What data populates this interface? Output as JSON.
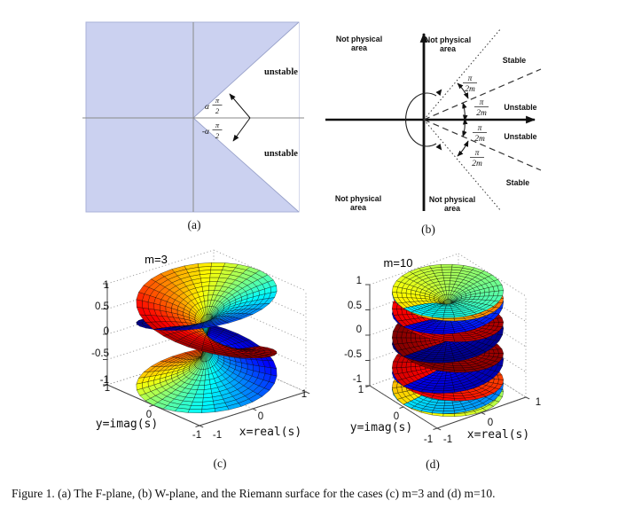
{
  "caption": "Figure 1. (a) The F-plane, (b) W-plane, and the Riemann surface for the cases (c) m=3 and (d) m=10.",
  "panel_a": {
    "label": "(a)",
    "unstable": "unstable",
    "angle_alpha": "α",
    "angle_alpha_neg": "-α",
    "frac_num": "π",
    "frac_den": "2",
    "region_fill": "#cbd1f0"
  },
  "panel_b": {
    "label": "(b)",
    "not_physical_line1": "Not physical",
    "not_physical_line2": "area",
    "stable": "Stable",
    "unstable": "Unstable",
    "frac_num": "π",
    "frac_den": "2m"
  },
  "chart_data": [
    {
      "type": "surface",
      "subplot": "(c)",
      "title": "m=3",
      "m": 3,
      "function": "Riemann surface of w = s^(1/3): height z = Re(s^(1/3)), color = Im(s^(1/3))",
      "sheets": 3,
      "theta_range_pi": [
        -3,
        3
      ],
      "xlabel": "x=real(s)",
      "ylabel": "y=imag(s)",
      "x_range": [
        -1,
        1
      ],
      "y_range": [
        -1,
        1
      ],
      "z_range": [
        -1,
        1
      ],
      "x_ticks": [
        -1,
        0,
        1
      ],
      "y_ticks": [
        1,
        0,
        -1
      ],
      "z_ticks": [
        1,
        0.5,
        0,
        -0.5,
        -1
      ],
      "colormap": "jet",
      "grid": true
    },
    {
      "type": "surface",
      "subplot": "(d)",
      "title": "m=10",
      "m": 10,
      "function": "Riemann surface of w = s^(1/10): height z = Re(s^(1/10)), color = Im(s^(1/10))",
      "sheets": 10,
      "theta_range_pi": [
        -10,
        10
      ],
      "xlabel": "x=real(s)",
      "ylabel": "y=imag(s)",
      "x_range": [
        -1,
        1
      ],
      "y_range": [
        -1,
        1
      ],
      "z_range": [
        -1,
        1
      ],
      "x_ticks": [
        -1,
        0,
        1
      ],
      "y_ticks": [
        1,
        0,
        -1
      ],
      "z_ticks": [
        1,
        0.5,
        0,
        -0.5,
        -1
      ],
      "colormap": "jet",
      "grid": true
    }
  ]
}
